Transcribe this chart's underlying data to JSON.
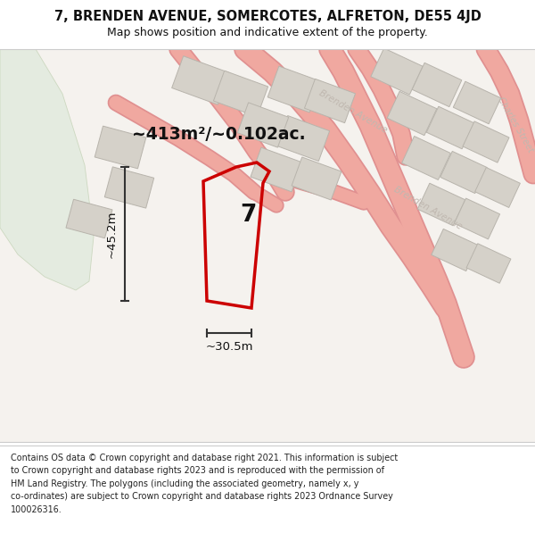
{
  "title_line1": "7, BRENDEN AVENUE, SOMERCOTES, ALFRETON, DE55 4JD",
  "title_line2": "Map shows position and indicative extent of the property.",
  "area_text": "~413m²/~0.102ac.",
  "label_width": "~30.5m",
  "label_height": "~45.2m",
  "property_number": "7",
  "footer_text": "Contains OS data © Crown copyright and database right 2021. This information is subject\nto Crown copyright and database rights 2023 and is reproduced with the permission of\nHM Land Registry. The polygons (including the associated geometry, namely x, y\nco-ordinates) are subject to Crown copyright and database rights 2023 Ordnance Survey\n100026316.",
  "map_bg": "#f5f2ee",
  "green_color": "#e4ebe0",
  "green_edge": "#ccd8c0",
  "road_fill": "#f0a8a0",
  "road_edge": "#e09090",
  "building_fill": "#d5d1c9",
  "building_edge": "#b8b4ac",
  "plot_edge": "#cc0000",
  "dim_color": "#333333",
  "text_dark": "#111111",
  "street_color": "#c0b8b0",
  "bg_white": "#ffffff"
}
